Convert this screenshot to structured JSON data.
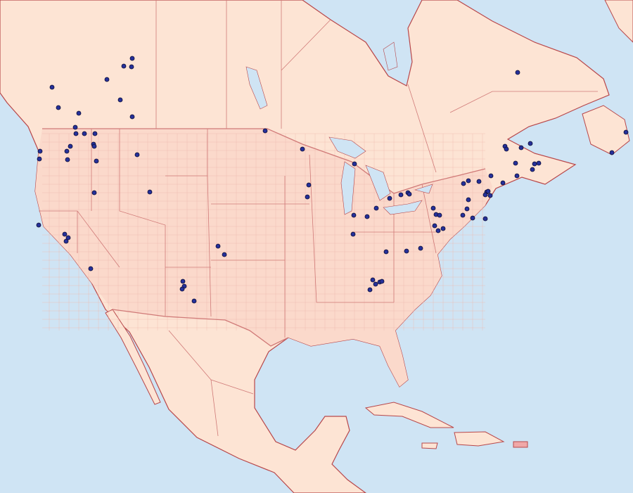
{
  "map": {
    "colors": {
      "ocean": "#cfe4f4",
      "land": "#fde4d4",
      "us_land": "#fbd9cb",
      "coast": "#b8474a",
      "border": "#d07a78",
      "county": "#efb8ad",
      "lake": "#cfe4f4",
      "occurrence": "#25309a",
      "occurrence_outline": "#0d0d33",
      "highlight_territory": "#f0a8a8"
    },
    "marker_icon": "occurrence-dot"
  }
}
